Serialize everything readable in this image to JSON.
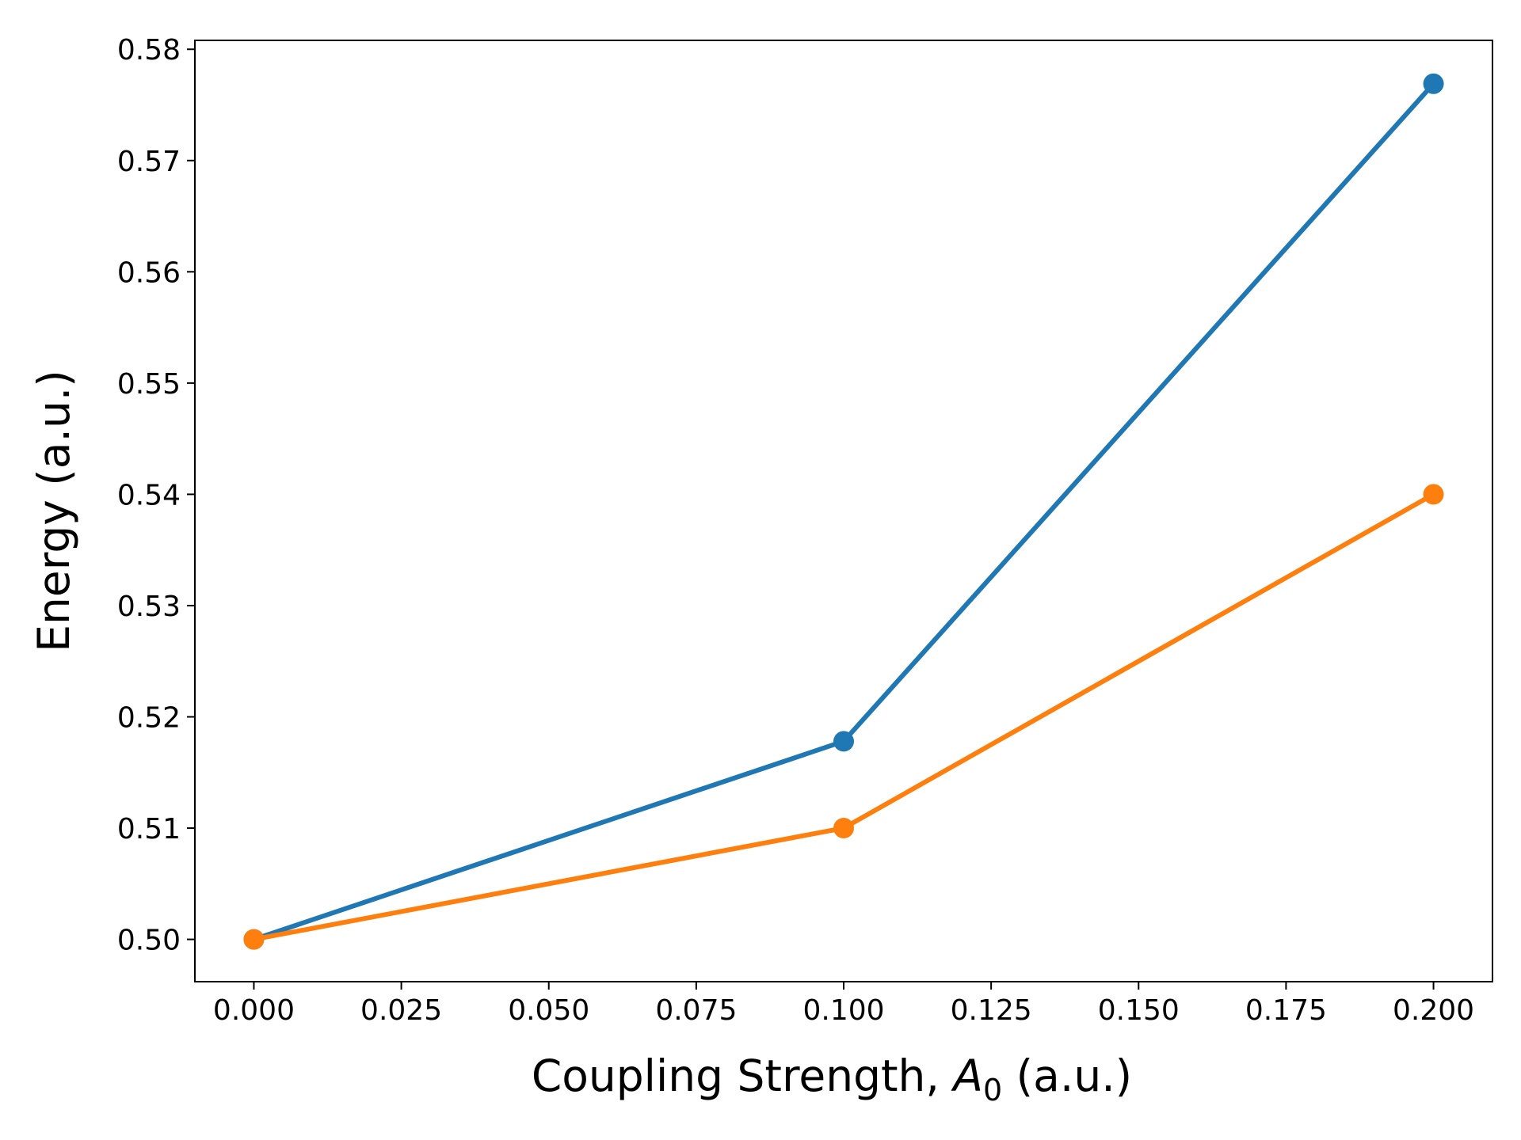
{
  "chart_data": {
    "type": "line",
    "title": "",
    "xlabel_prefix": "Coupling Strength, ",
    "xlabel_symbol": "A",
    "xlabel_subscript": "0",
    "xlabel_suffix": " (a.u.)",
    "ylabel": "Energy (a.u.)",
    "xlim": [
      -0.01,
      0.21
    ],
    "ylim": [
      0.4962,
      0.5808
    ],
    "xticks": [
      0.0,
      0.025,
      0.05,
      0.075,
      0.1,
      0.125,
      0.15,
      0.175,
      0.2
    ],
    "xtick_labels": [
      "0.000",
      "0.025",
      "0.050",
      "0.075",
      "0.100",
      "0.125",
      "0.150",
      "0.175",
      "0.200"
    ],
    "yticks": [
      0.5,
      0.51,
      0.52,
      0.53,
      0.54,
      0.55,
      0.56,
      0.57,
      0.58
    ],
    "ytick_labels": [
      "0.50",
      "0.51",
      "0.52",
      "0.53",
      "0.54",
      "0.55",
      "0.56",
      "0.57",
      "0.58"
    ],
    "grid": false,
    "x": [
      0.0,
      0.1,
      0.2
    ],
    "series": [
      {
        "color": "#1f77b4",
        "values": [
          0.5,
          0.5178,
          0.5769
        ]
      },
      {
        "color": "#ff7f0e",
        "values": [
          0.5,
          0.51,
          0.54
        ]
      }
    ]
  }
}
